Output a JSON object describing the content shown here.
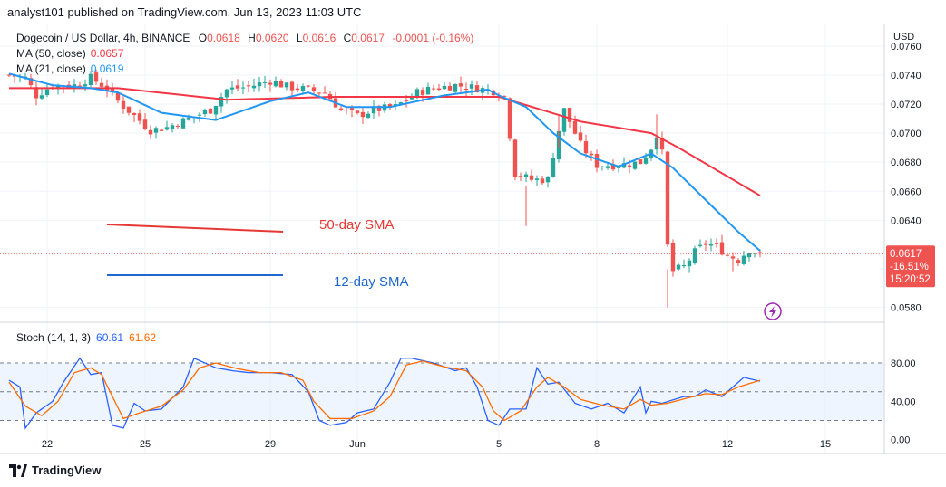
{
  "header": {
    "text": "analyst101 published on TradingView.com, Jun 13, 2023 11:03 UTC"
  },
  "legend": {
    "symbol": "Dogecoin / US Dollar, 4h, BINANCE",
    "o_label": "O",
    "o_value": "0.0618",
    "h_label": "H",
    "h_value": "0.0620",
    "l_label": "L",
    "l_value": "0.0616",
    "c_label": "C",
    "c_value": "0.0617",
    "change": "-0.0001 (-0.16%)",
    "ma50_label": "MA (50, close)",
    "ma50_value": "0.0657",
    "ma21_label": "MA (21, close)",
    "ma21_value": "0.0619"
  },
  "stoch": {
    "label": "Stoch (14, 1, 3)",
    "k_value": "60.61",
    "d_value": "61.62"
  },
  "price_box": {
    "price": "0.0617",
    "change_pct": "-16.51%",
    "countdown": "15:20:52"
  },
  "annotations": {
    "sma50_text": "50-day SMA",
    "sma12_text": "12-day SMA"
  },
  "footer": {
    "brand": "TradingView"
  },
  "colors": {
    "up": "#26a69a",
    "down": "#ef5350",
    "ma50": "#f23645",
    "ma21": "#2962ff",
    "stoch_k": "#2962ff",
    "stoch_d": "#ff6d00",
    "stoch_band": "#e3effd"
  },
  "chart_data": {
    "type": "candlestick",
    "currency_label": "USD",
    "price_axis": {
      "ticks": [
        "0.0760",
        "0.0740",
        "0.0720",
        "0.0700",
        "0.0680",
        "0.0660",
        "0.0640",
        "0.0580"
      ],
      "range": [
        0.0576,
        0.0768
      ]
    },
    "stoch_axis": {
      "ticks": [
        "80.00",
        "40.00",
        "0.00"
      ],
      "range": [
        -5,
        115
      ],
      "bands": [
        20,
        50,
        80
      ]
    },
    "x_ticks": [
      {
        "label": "22",
        "bar": 7
      },
      {
        "label": "25",
        "bar": 25
      },
      {
        "label": "29",
        "bar": 48
      },
      {
        "label": "Jun",
        "bar": 64
      },
      {
        "label": "5",
        "bar": 90
      },
      {
        "label": "8",
        "bar": 108
      },
      {
        "label": "12",
        "bar": 132
      },
      {
        "label": "15",
        "bar": 150
      }
    ],
    "waypoints": [
      [
        0,
        0.074
      ],
      [
        3,
        0.0738
      ],
      [
        5,
        0.0726
      ],
      [
        8,
        0.0733
      ],
      [
        12,
        0.0733
      ],
      [
        15,
        0.0738
      ],
      [
        18,
        0.0731
      ],
      [
        20,
        0.0722
      ],
      [
        23,
        0.0712
      ],
      [
        26,
        0.0702
      ],
      [
        29,
        0.0704
      ],
      [
        33,
        0.071
      ],
      [
        37,
        0.0716
      ],
      [
        40,
        0.073
      ],
      [
        44,
        0.0732
      ],
      [
        48,
        0.0736
      ],
      [
        51,
        0.0732
      ],
      [
        55,
        0.073
      ],
      [
        58,
        0.0728
      ],
      [
        61,
        0.0716
      ],
      [
        64,
        0.0712
      ],
      [
        67,
        0.0716
      ],
      [
        71,
        0.0718
      ],
      [
        75,
        0.0728
      ],
      [
        78,
        0.0731
      ],
      [
        82,
        0.0733
      ],
      [
        86,
        0.0731
      ],
      [
        89,
        0.0729
      ],
      [
        91,
        0.0725
      ],
      [
        93,
        0.0672
      ],
      [
        96,
        0.0668
      ],
      [
        99,
        0.0668
      ],
      [
        101,
        0.0702
      ],
      [
        102,
        0.0716
      ],
      [
        105,
        0.0692
      ],
      [
        108,
        0.0678
      ],
      [
        112,
        0.0678
      ],
      [
        116,
        0.068
      ],
      [
        118,
        0.069
      ],
      [
        119,
        0.07
      ],
      [
        120,
        0.0686
      ],
      [
        121,
        0.0622
      ],
      [
        122,
        0.0605
      ],
      [
        124,
        0.0608
      ],
      [
        126,
        0.0618
      ],
      [
        128,
        0.0624
      ],
      [
        130,
        0.0622
      ],
      [
        132,
        0.0616
      ],
      [
        134,
        0.0613
      ],
      [
        136,
        0.062
      ],
      [
        138,
        0.0617
      ]
    ],
    "ma50_waypoints": [
      [
        0,
        0.0731
      ],
      [
        20,
        0.0731
      ],
      [
        40,
        0.0723
      ],
      [
        60,
        0.0725
      ],
      [
        90,
        0.0725
      ],
      [
        105,
        0.0708
      ],
      [
        118,
        0.07
      ],
      [
        123,
        0.069
      ],
      [
        138,
        0.0657
      ]
    ],
    "ma21_waypoints": [
      [
        0,
        0.0741
      ],
      [
        8,
        0.0733
      ],
      [
        15,
        0.0731
      ],
      [
        20,
        0.0728
      ],
      [
        28,
        0.0714
      ],
      [
        38,
        0.0709
      ],
      [
        48,
        0.0722
      ],
      [
        55,
        0.0728
      ],
      [
        62,
        0.0718
      ],
      [
        70,
        0.0718
      ],
      [
        80,
        0.0726
      ],
      [
        88,
        0.073
      ],
      [
        90,
        0.0726
      ],
      [
        95,
        0.0718
      ],
      [
        100,
        0.07
      ],
      [
        105,
        0.0686
      ],
      [
        112,
        0.0677
      ],
      [
        118,
        0.0686
      ],
      [
        122,
        0.0676
      ],
      [
        128,
        0.0654
      ],
      [
        134,
        0.0632
      ],
      [
        138,
        0.0619
      ]
    ],
    "stoch_k_waypoints": [
      [
        0,
        62
      ],
      [
        2,
        55
      ],
      [
        3,
        12
      ],
      [
        5,
        28
      ],
      [
        8,
        40
      ],
      [
        10,
        60
      ],
      [
        13,
        85
      ],
      [
        15,
        68
      ],
      [
        17,
        70
      ],
      [
        19,
        15
      ],
      [
        21,
        12
      ],
      [
        23,
        38
      ],
      [
        25,
        30
      ],
      [
        28,
        32
      ],
      [
        32,
        55
      ],
      [
        34,
        85
      ],
      [
        36,
        80
      ],
      [
        38,
        75
      ],
      [
        41,
        72
      ],
      [
        44,
        70
      ],
      [
        48,
        70
      ],
      [
        52,
        68
      ],
      [
        55,
        50
      ],
      [
        57,
        20
      ],
      [
        59,
        15
      ],
      [
        62,
        18
      ],
      [
        64,
        28
      ],
      [
        67,
        32
      ],
      [
        70,
        60
      ],
      [
        72,
        85
      ],
      [
        74,
        85
      ],
      [
        78,
        80
      ],
      [
        82,
        72
      ],
      [
        84,
        75
      ],
      [
        86,
        55
      ],
      [
        88,
        20
      ],
      [
        90,
        15
      ],
      [
        92,
        32
      ],
      [
        95,
        32
      ],
      [
        97,
        75
      ],
      [
        99,
        58
      ],
      [
        101,
        60
      ],
      [
        104,
        38
      ],
      [
        107,
        32
      ],
      [
        110,
        38
      ],
      [
        113,
        28
      ],
      [
        116,
        55
      ],
      [
        117,
        28
      ],
      [
        118,
        40
      ],
      [
        120,
        38
      ],
      [
        124,
        45
      ],
      [
        126,
        45
      ],
      [
        128,
        52
      ],
      [
        131,
        45
      ],
      [
        133,
        55
      ],
      [
        135,
        65
      ],
      [
        138,
        61
      ]
    ],
    "stoch_d_waypoints": [
      [
        0,
        60
      ],
      [
        3,
        35
      ],
      [
        6,
        25
      ],
      [
        9,
        40
      ],
      [
        12,
        70
      ],
      [
        15,
        75
      ],
      [
        17,
        68
      ],
      [
        19,
        45
      ],
      [
        21,
        22
      ],
      [
        24,
        28
      ],
      [
        28,
        35
      ],
      [
        32,
        52
      ],
      [
        35,
        75
      ],
      [
        38,
        80
      ],
      [
        42,
        74
      ],
      [
        46,
        70
      ],
      [
        50,
        70
      ],
      [
        54,
        62
      ],
      [
        56,
        40
      ],
      [
        59,
        22
      ],
      [
        63,
        22
      ],
      [
        67,
        30
      ],
      [
        70,
        45
      ],
      [
        73,
        78
      ],
      [
        76,
        82
      ],
      [
        80,
        76
      ],
      [
        84,
        72
      ],
      [
        87,
        55
      ],
      [
        89,
        30
      ],
      [
        91,
        20
      ],
      [
        94,
        30
      ],
      [
        97,
        55
      ],
      [
        99,
        65
      ],
      [
        102,
        55
      ],
      [
        105,
        42
      ],
      [
        109,
        36
      ],
      [
        113,
        32
      ],
      [
        116,
        42
      ],
      [
        118,
        36
      ],
      [
        121,
        38
      ],
      [
        125,
        44
      ],
      [
        128,
        48
      ],
      [
        131,
        47
      ],
      [
        134,
        55
      ],
      [
        138,
        62
      ]
    ],
    "label_50": "50-day SMA",
    "label_12": "12-day SMA"
  }
}
